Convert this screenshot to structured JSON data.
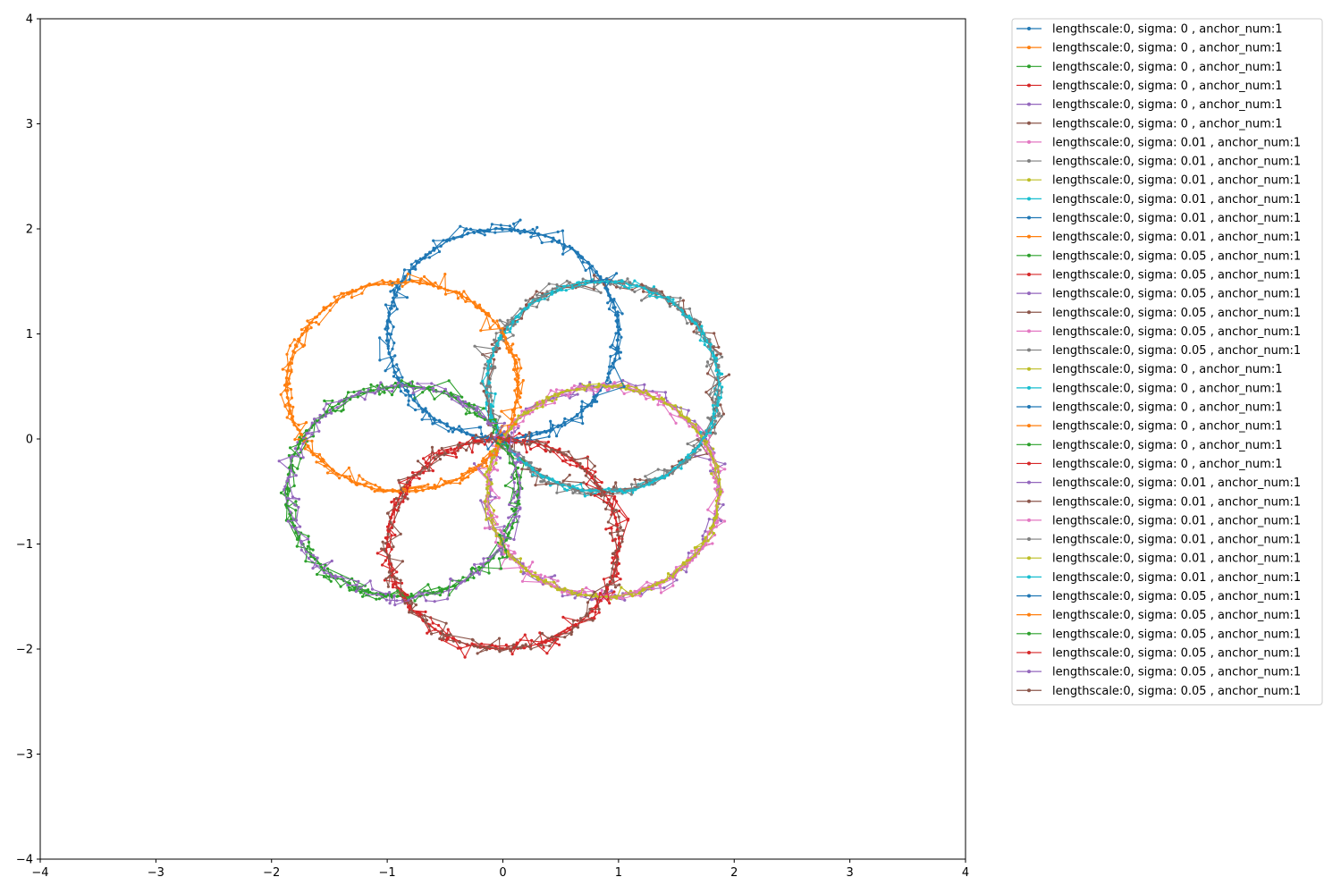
{
  "chart_data": {
    "type": "line",
    "title": "",
    "xlabel": "",
    "ylabel": "",
    "xlim": [
      -4,
      4
    ],
    "ylim": [
      -4,
      4
    ],
    "xticks": [
      -4,
      -3,
      -2,
      -1,
      0,
      1,
      2,
      3,
      4
    ],
    "yticks": [
      -4,
      -3,
      -2,
      -1,
      0,
      1,
      2,
      3,
      4
    ],
    "xtick_labels": [
      "−4",
      "−3",
      "−2",
      "−1",
      "0",
      "1",
      "2",
      "3",
      "4"
    ],
    "ytick_labels": [
      "−4",
      "−3",
      "−2",
      "−1",
      "0",
      "1",
      "2",
      "3",
      "4"
    ],
    "grid": false,
    "legend_position": "outside-upper-right",
    "shape": {
      "description_units": "data",
      "circle_radius": 1,
      "circle_center_distance": 1,
      "circle_count": 6,
      "circle_center_angles_deg": [
        90,
        150,
        210,
        270,
        330,
        30
      ]
    },
    "series": [
      {
        "name": "lengthscale:0, sigma: 0 , anchor_num:1",
        "color": "#1f77b4",
        "sigma": 0,
        "circle": 0
      },
      {
        "name": "lengthscale:0, sigma: 0 , anchor_num:1",
        "color": "#ff7f0e",
        "sigma": 0,
        "circle": 1
      },
      {
        "name": "lengthscale:0, sigma: 0 , anchor_num:1",
        "color": "#2ca02c",
        "sigma": 0,
        "circle": 2
      },
      {
        "name": "lengthscale:0, sigma: 0 , anchor_num:1",
        "color": "#d62728",
        "sigma": 0,
        "circle": 3
      },
      {
        "name": "lengthscale:0, sigma: 0 , anchor_num:1",
        "color": "#9467bd",
        "sigma": 0,
        "circle": 4
      },
      {
        "name": "lengthscale:0, sigma: 0 , anchor_num:1",
        "color": "#8c564b",
        "sigma": 0,
        "circle": 5
      },
      {
        "name": "lengthscale:0, sigma: 0.01 , anchor_num:1",
        "color": "#e377c2",
        "sigma": 0.01,
        "circle": 4
      },
      {
        "name": "lengthscale:0, sigma: 0.01 , anchor_num:1",
        "color": "#7f7f7f",
        "sigma": 0.01,
        "circle": 5
      },
      {
        "name": "lengthscale:0, sigma: 0.01 , anchor_num:1",
        "color": "#bcbd22",
        "sigma": 0.01,
        "circle": 4
      },
      {
        "name": "lengthscale:0, sigma: 0.01 , anchor_num:1",
        "color": "#17becf",
        "sigma": 0.01,
        "circle": 5
      },
      {
        "name": "lengthscale:0, sigma: 0.01 , anchor_num:1",
        "color": "#1f77b4",
        "sigma": 0.01,
        "circle": 0
      },
      {
        "name": "lengthscale:0, sigma: 0.01 , anchor_num:1",
        "color": "#ff7f0e",
        "sigma": 0.01,
        "circle": 1
      },
      {
        "name": "lengthscale:0, sigma: 0.05 , anchor_num:1",
        "color": "#2ca02c",
        "sigma": 0.05,
        "circle": 2
      },
      {
        "name": "lengthscale:0, sigma: 0.05 , anchor_num:1",
        "color": "#d62728",
        "sigma": 0.05,
        "circle": 3
      },
      {
        "name": "lengthscale:0, sigma: 0.05 , anchor_num:1",
        "color": "#9467bd",
        "sigma": 0.05,
        "circle": 4
      },
      {
        "name": "lengthscale:0, sigma: 0.05 , anchor_num:1",
        "color": "#8c564b",
        "sigma": 0.05,
        "circle": 5
      },
      {
        "name": "lengthscale:0, sigma: 0.05 , anchor_num:1",
        "color": "#e377c2",
        "sigma": 0.05,
        "circle": 4
      },
      {
        "name": "lengthscale:0, sigma: 0.05 , anchor_num:1",
        "color": "#7f7f7f",
        "sigma": 0.05,
        "circle": 5
      },
      {
        "name": "lengthscale:0, sigma: 0 , anchor_num:1",
        "color": "#bcbd22",
        "sigma": 0,
        "circle": 4
      },
      {
        "name": "lengthscale:0, sigma: 0 , anchor_num:1",
        "color": "#17becf",
        "sigma": 0,
        "circle": 5
      },
      {
        "name": "lengthscale:0, sigma: 0 , anchor_num:1",
        "color": "#1f77b4",
        "sigma": 0,
        "circle": 0
      },
      {
        "name": "lengthscale:0, sigma: 0 , anchor_num:1",
        "color": "#ff7f0e",
        "sigma": 0,
        "circle": 1
      },
      {
        "name": "lengthscale:0, sigma: 0 , anchor_num:1",
        "color": "#2ca02c",
        "sigma": 0,
        "circle": 2
      },
      {
        "name": "lengthscale:0, sigma: 0 , anchor_num:1",
        "color": "#d62728",
        "sigma": 0,
        "circle": 3
      },
      {
        "name": "lengthscale:0, sigma: 0.01 , anchor_num:1",
        "color": "#9467bd",
        "sigma": 0.01,
        "circle": 2
      },
      {
        "name": "lengthscale:0, sigma: 0.01 , anchor_num:1",
        "color": "#8c564b",
        "sigma": 0.01,
        "circle": 3
      },
      {
        "name": "lengthscale:0, sigma: 0.01 , anchor_num:1",
        "color": "#e377c2",
        "sigma": 0.01,
        "circle": 4
      },
      {
        "name": "lengthscale:0, sigma: 0.01 , anchor_num:1",
        "color": "#7f7f7f",
        "sigma": 0.01,
        "circle": 5
      },
      {
        "name": "lengthscale:0, sigma: 0.01 , anchor_num:1",
        "color": "#bcbd22",
        "sigma": 0.01,
        "circle": 4
      },
      {
        "name": "lengthscale:0, sigma: 0.01 , anchor_num:1",
        "color": "#17becf",
        "sigma": 0.01,
        "circle": 5
      },
      {
        "name": "lengthscale:0, sigma: 0.05 , anchor_num:1",
        "color": "#1f77b4",
        "sigma": 0.05,
        "circle": 0
      },
      {
        "name": "lengthscale:0, sigma: 0.05 , anchor_num:1",
        "color": "#ff7f0e",
        "sigma": 0.05,
        "circle": 1
      },
      {
        "name": "lengthscale:0, sigma: 0.05 , anchor_num:1",
        "color": "#2ca02c",
        "sigma": 0.05,
        "circle": 2
      },
      {
        "name": "lengthscale:0, sigma: 0.05 , anchor_num:1",
        "color": "#d62728",
        "sigma": 0.05,
        "circle": 3
      },
      {
        "name": "lengthscale:0, sigma: 0.05 , anchor_num:1",
        "color": "#9467bd",
        "sigma": 0.05,
        "circle": 2
      },
      {
        "name": "lengthscale:0, sigma: 0.05 , anchor_num:1",
        "color": "#8c564b",
        "sigma": 0.05,
        "circle": 3
      }
    ]
  }
}
